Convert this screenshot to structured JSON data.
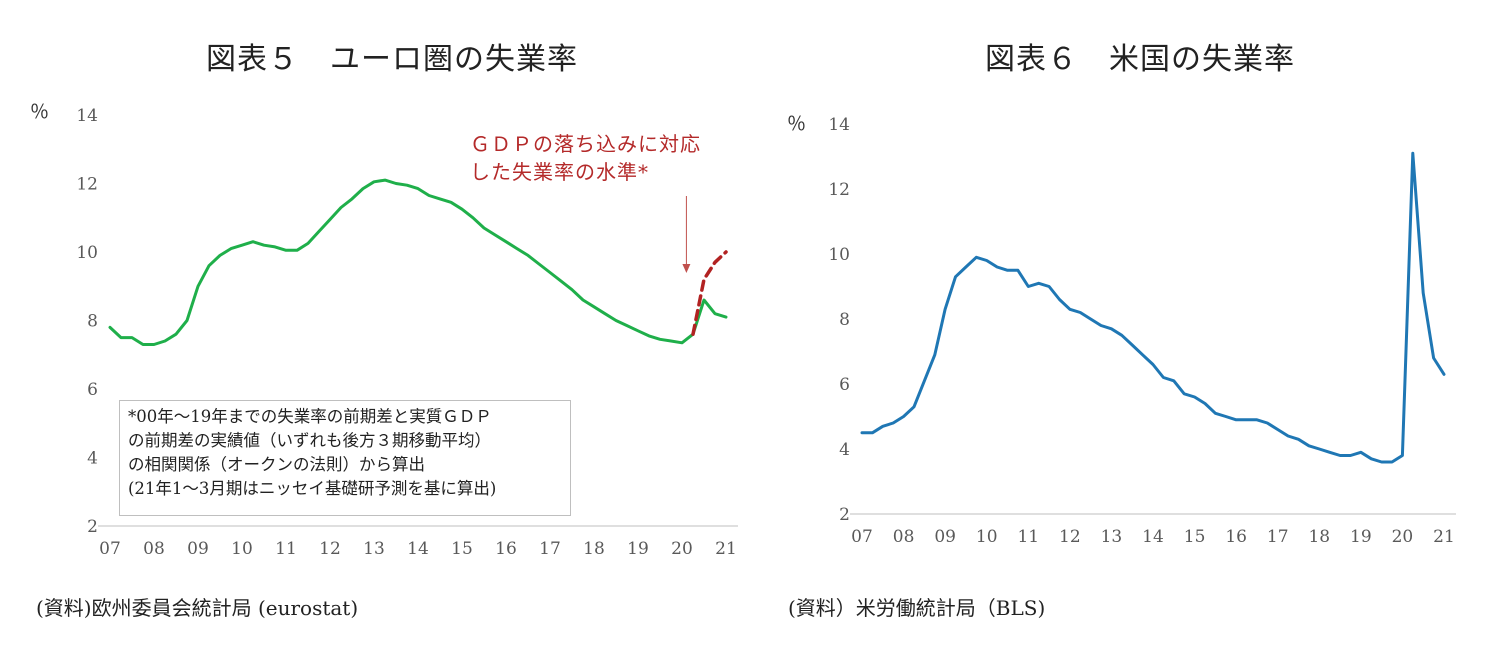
{
  "chart_data": [
    {
      "type": "line",
      "title": "図表５　ユーロ圏の失業率",
      "unit_label": "％",
      "ylim": [
        2,
        14
      ],
      "y_ticks": [
        "2",
        "4",
        "6",
        "8",
        "10",
        "12",
        "14"
      ],
      "x_tick_labels": [
        "07",
        "08",
        "09",
        "10",
        "11",
        "12",
        "13",
        "14",
        "15",
        "16",
        "17",
        "18",
        "19",
        "20",
        "21"
      ],
      "xlim": [
        2007,
        2021
      ],
      "grid": false,
      "series": [
        {
          "style": "solid",
          "color": "#1faf4a",
          "x": [
            2007.0,
            2007.25,
            2007.5,
            2007.75,
            2008.0,
            2008.25,
            2008.5,
            2008.75,
            2009.0,
            2009.25,
            2009.5,
            2009.75,
            2010.0,
            2010.25,
            2010.5,
            2010.75,
            2011.0,
            2011.25,
            2011.5,
            2011.75,
            2012.0,
            2012.25,
            2012.5,
            2012.75,
            2013.0,
            2013.25,
            2013.5,
            2013.75,
            2014.0,
            2014.25,
            2014.5,
            2014.75,
            2015.0,
            2015.25,
            2015.5,
            2015.75,
            2016.0,
            2016.25,
            2016.5,
            2016.75,
            2017.0,
            2017.25,
            2017.5,
            2017.75,
            2018.0,
            2018.25,
            2018.5,
            2018.75,
            2019.0,
            2019.25,
            2019.5,
            2019.75,
            2020.0,
            2020.25,
            2020.5,
            2020.75,
            2021.0
          ],
          "y": [
            7.8,
            7.5,
            7.5,
            7.3,
            7.3,
            7.4,
            7.6,
            8.0,
            9.0,
            9.6,
            9.9,
            10.1,
            10.2,
            10.3,
            10.2,
            10.15,
            10.05,
            10.05,
            10.25,
            10.6,
            10.95,
            11.3,
            11.55,
            11.85,
            12.05,
            12.1,
            12.0,
            11.95,
            11.85,
            11.65,
            11.55,
            11.45,
            11.25,
            11.0,
            10.7,
            10.5,
            10.3,
            10.1,
            9.9,
            9.65,
            9.4,
            9.15,
            8.9,
            8.6,
            8.4,
            8.2,
            8.0,
            7.85,
            7.7,
            7.55,
            7.45,
            7.4,
            7.35,
            7.6,
            8.6,
            8.2,
            8.1
          ]
        },
        {
          "style": "dashed",
          "color": "#b22222",
          "x": [
            2020.25,
            2020.5,
            2020.75,
            2021.0
          ],
          "y": [
            7.6,
            9.2,
            9.7,
            10.0
          ]
        }
      ],
      "annotation_lines": [
        "ＧＤＰの落ち込みに対応",
        "した失業率の水準*"
      ],
      "annotation_arrow_x": 2020.1,
      "note_lines": [
        "*00年～19年までの失業率の前期差と実質ＧＤＰ",
        "の前期差の実績値（いずれも後方３期移動平均）",
        "の相関関係（オークンの法則）から算出",
        "(21年1～3月期はニッセイ基礎研予測を基に算出)"
      ],
      "source": "(資料)欧州委員会統計局 (eurostat)"
    },
    {
      "type": "line",
      "title": "図表６　米国の失業率",
      "unit_label": "％",
      "ylim": [
        2,
        14
      ],
      "y_ticks": [
        "2",
        "4",
        "6",
        "8",
        "10",
        "12",
        "14"
      ],
      "x_tick_labels": [
        "07",
        "08",
        "09",
        "10",
        "11",
        "12",
        "13",
        "14",
        "15",
        "16",
        "17",
        "18",
        "19",
        "20",
        "21"
      ],
      "xlim": [
        2007,
        2021
      ],
      "grid": false,
      "series": [
        {
          "style": "solid",
          "color": "#1f77b4",
          "x": [
            2007.0,
            2007.25,
            2007.5,
            2007.75,
            2008.0,
            2008.25,
            2008.5,
            2008.75,
            2009.0,
            2009.25,
            2009.5,
            2009.75,
            2010.0,
            2010.25,
            2010.5,
            2010.75,
            2011.0,
            2011.25,
            2011.5,
            2011.75,
            2012.0,
            2012.25,
            2012.5,
            2012.75,
            2013.0,
            2013.25,
            2013.5,
            2013.75,
            2014.0,
            2014.25,
            2014.5,
            2014.75,
            2015.0,
            2015.25,
            2015.5,
            2015.75,
            2016.0,
            2016.25,
            2016.5,
            2016.75,
            2017.0,
            2017.25,
            2017.5,
            2017.75,
            2018.0,
            2018.25,
            2018.5,
            2018.75,
            2019.0,
            2019.25,
            2019.5,
            2019.75,
            2020.0,
            2020.25,
            2020.5,
            2020.75,
            2021.0
          ],
          "y": [
            4.5,
            4.5,
            4.7,
            4.8,
            5.0,
            5.3,
            6.1,
            6.9,
            8.3,
            9.3,
            9.6,
            9.9,
            9.8,
            9.6,
            9.5,
            9.5,
            9.0,
            9.1,
            9.0,
            8.6,
            8.3,
            8.2,
            8.0,
            7.8,
            7.7,
            7.5,
            7.2,
            6.9,
            6.6,
            6.2,
            6.1,
            5.7,
            5.6,
            5.4,
            5.1,
            5.0,
            4.9,
            4.9,
            4.9,
            4.8,
            4.6,
            4.4,
            4.3,
            4.1,
            4.0,
            3.9,
            3.8,
            3.8,
            3.9,
            3.7,
            3.6,
            3.6,
            3.8,
            13.1,
            8.8,
            6.8,
            6.3
          ]
        }
      ],
      "source": "(資料）米労働統計局（BLS)"
    }
  ]
}
